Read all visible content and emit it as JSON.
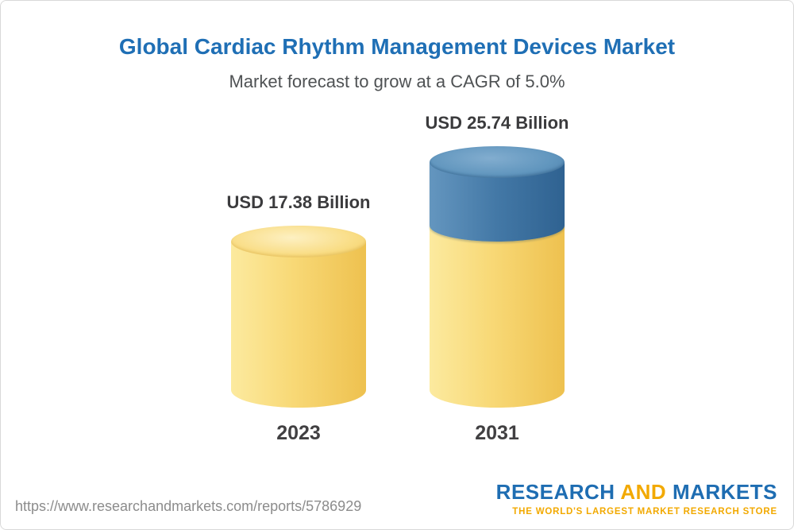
{
  "title": "Global Cardiac Rhythm Management Devices Market",
  "subtitle": "Market forecast to grow at a CAGR of 5.0%",
  "chart_data": {
    "type": "bar",
    "variant": "3d-cylinder",
    "categories": [
      "2023",
      "2031"
    ],
    "values": [
      17.38,
      25.74
    ],
    "value_labels": [
      "USD 17.38 Billion",
      "USD 25.74 Billion"
    ],
    "unit": "USD Billion",
    "cagr": "5.0%",
    "title": "Global Cardiac Rhythm Management Devices Market",
    "subtitle": "Market forecast to grow at a CAGR of 5.0%",
    "xlabel": "",
    "ylabel": "",
    "grid": false,
    "legend": false,
    "bar_colors": [
      {
        "category": "2023",
        "segments": [
          {
            "value": 17.38,
            "color": "#f3cd61"
          }
        ]
      },
      {
        "category": "2031",
        "segments": [
          {
            "value": 17.38,
            "color": "#f3cd61"
          },
          {
            "value": 8.36,
            "color": "#3f739f"
          }
        ]
      }
    ],
    "colors": {
      "base": "#f3cd61",
      "growth": "#3f739f",
      "title": "#1f6fb5",
      "label": "#3b3b3d"
    }
  },
  "footer": {
    "url": "https://www.researchandmarkets.com/reports/5786929",
    "brand": {
      "word1": "RESEARCH",
      "word2": "AND",
      "word3": "MARKETS",
      "tagline": "THE WORLD'S LARGEST MARKET RESEARCH STORE"
    }
  }
}
